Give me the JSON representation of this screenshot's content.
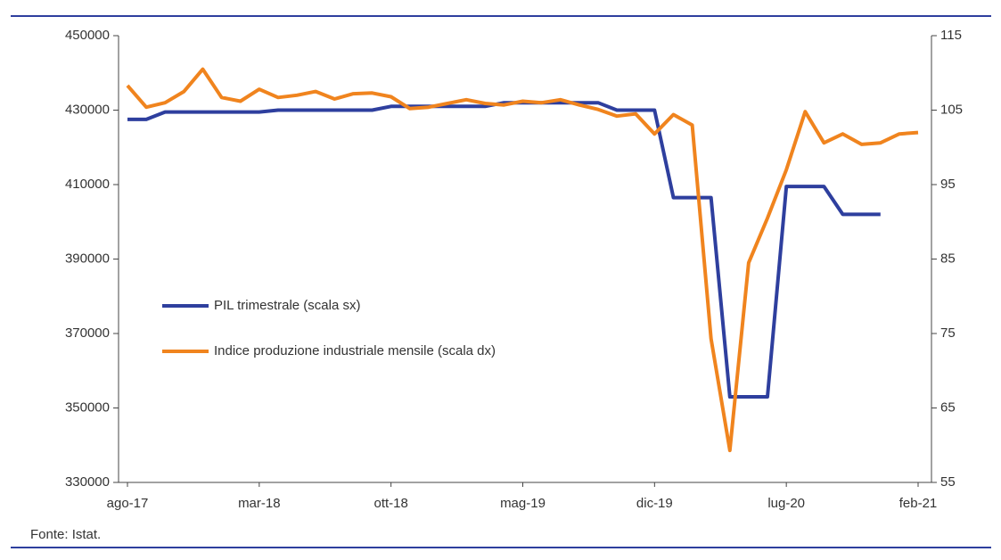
{
  "chart_data": {
    "type": "line",
    "categories": [
      "ago-17",
      null,
      null,
      null,
      null,
      null,
      null,
      "mar-18",
      null,
      null,
      null,
      null,
      null,
      null,
      "ott-18",
      null,
      null,
      null,
      null,
      null,
      null,
      "mag-19",
      null,
      null,
      null,
      null,
      null,
      null,
      "dic-19",
      null,
      null,
      null,
      null,
      null,
      null,
      "lug-20",
      null,
      null,
      null,
      null,
      null,
      null,
      "feb-21"
    ],
    "series": [
      {
        "name": "PIL trimestrale (scala sx)",
        "color": "#2e3f9e",
        "axis": "y",
        "values": [
          427500,
          427500,
          429500,
          429500,
          429500,
          429500,
          429500,
          429500,
          430000,
          430000,
          430000,
          430000,
          430000,
          430000,
          431000,
          431000,
          431000,
          431000,
          431000,
          431000,
          432000,
          432000,
          432000,
          432000,
          432000,
          432000,
          430000,
          430000,
          430000,
          406500,
          406500,
          406500,
          353000,
          353000,
          353000,
          409500,
          409500,
          409500,
          402000,
          402000,
          402000,
          null,
          null
        ]
      },
      {
        "name": "Indice produzione industriale mensile (scala dx)",
        "color": "#f0841e",
        "axis": "y2",
        "values": [
          108.3,
          105.4,
          106,
          107.5,
          110.5,
          106.7,
          106.2,
          107.8,
          106.7,
          107,
          107.5,
          106.5,
          107.2,
          107.3,
          106.8,
          105.2,
          105.4,
          105.9,
          106.4,
          105.9,
          105.7,
          106.2,
          106,
          106.4,
          105.7,
          105.1,
          104.2,
          104.5,
          101.8,
          104.4,
          103,
          74.3,
          59.3,
          84.5,
          90.5,
          97,
          104.8,
          100.6,
          101.8,
          100.4,
          100.6,
          101.8,
          102
        ]
      }
    ],
    "ylim": [
      330000,
      450000
    ],
    "yticks": [
      330000,
      350000,
      370000,
      390000,
      410000,
      430000,
      450000
    ],
    "y2lim": [
      55,
      115
    ],
    "y2ticks": [
      55,
      65,
      75,
      85,
      95,
      105,
      115
    ],
    "legend": "center-left",
    "source": "Fonte: Istat."
  }
}
